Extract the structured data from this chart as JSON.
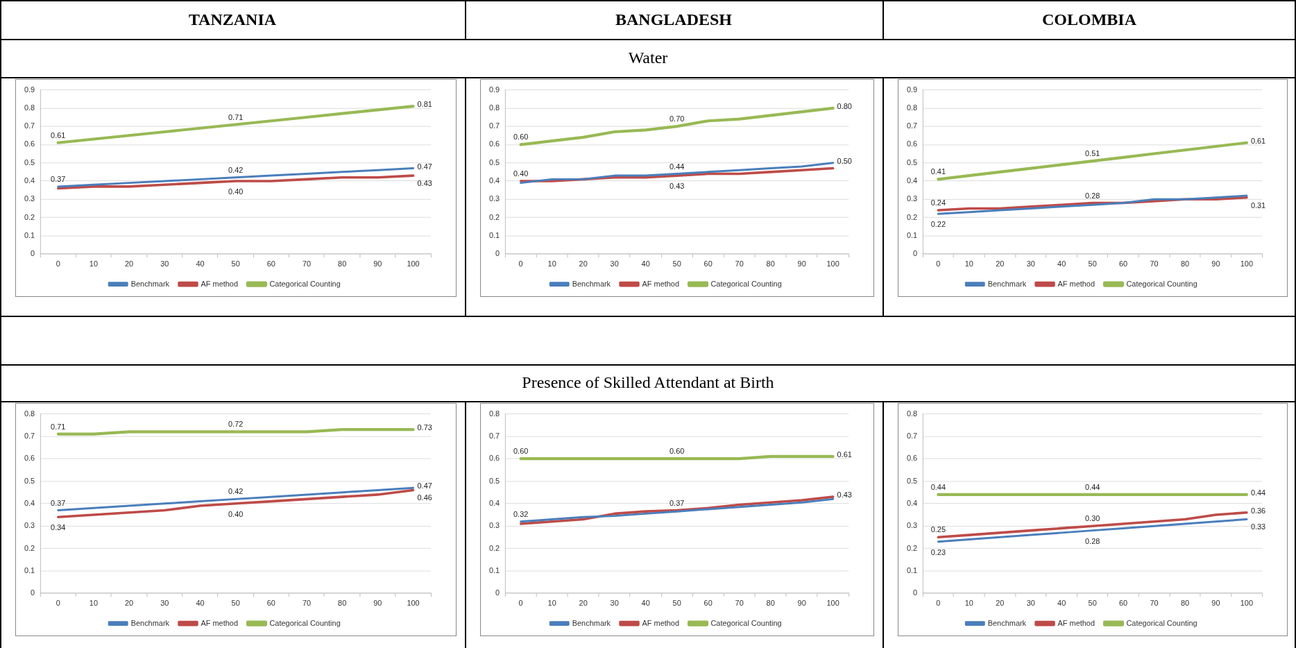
{
  "chart_data": [
    {
      "type": "line",
      "title": "TANZANIA",
      "annotations": [
        "Water"
      ],
      "categories": [
        "0",
        "10",
        "20",
        "30",
        "40",
        "50",
        "60",
        "70",
        "80",
        "90",
        "100"
      ],
      "ylim": [
        0,
        0.9
      ],
      "yticks": [
        0,
        0.1,
        0.2,
        0.3,
        0.4,
        0.5,
        0.6,
        0.7,
        0.8,
        0.9
      ],
      "grid": "y",
      "legend": "bottom",
      "marker": "none",
      "series": [
        {
          "name": "Benchmark",
          "color": "#4a7ebb",
          "values": [
            0.37,
            0.38,
            0.39,
            0.4,
            0.41,
            0.42,
            0.43,
            0.44,
            0.45,
            0.46,
            0.47
          ],
          "value_labels": [
            "0.37",
            null,
            null,
            null,
            null,
            "0.42",
            null,
            null,
            null,
            null,
            "0.47"
          ]
        },
        {
          "name": "AF method",
          "color": "#be4b48",
          "values": [
            0.36,
            0.37,
            0.37,
            0.38,
            0.39,
            0.4,
            0.4,
            0.41,
            0.42,
            0.42,
            0.43
          ],
          "value_labels": [
            null,
            null,
            null,
            null,
            null,
            "0.40",
            null,
            null,
            null,
            null,
            "0.43"
          ]
        },
        {
          "name": "Categorical Counting",
          "color": "#98b954",
          "values": [
            0.61,
            0.63,
            0.65,
            0.67,
            0.69,
            0.71,
            0.73,
            0.75,
            0.77,
            0.79,
            0.81
          ],
          "value_labels": [
            "0.61",
            null,
            null,
            null,
            null,
            "0.71",
            null,
            null,
            null,
            null,
            "0.81"
          ]
        }
      ]
    },
    {
      "type": "line",
      "title": "BANGLADESH",
      "categories": [
        "0",
        "10",
        "20",
        "30",
        "40",
        "50",
        "60",
        "70",
        "80",
        "90",
        "100"
      ],
      "ylim": [
        0,
        0.9
      ],
      "yticks": [
        0,
        0.1,
        0.2,
        0.3,
        0.4,
        0.5,
        0.6,
        0.7,
        0.8,
        0.9
      ],
      "grid": "y",
      "legend": "bottom",
      "marker": "none",
      "series": [
        {
          "name": "Benchmark",
          "color": "#4a7ebb",
          "values": [
            0.39,
            0.41,
            0.41,
            0.43,
            0.43,
            0.44,
            0.45,
            0.46,
            0.47,
            0.48,
            0.5
          ],
          "value_labels": [
            null,
            null,
            null,
            null,
            null,
            "0.44",
            null,
            null,
            null,
            null,
            "0.50"
          ]
        },
        {
          "name": "AF method",
          "color": "#be4b48",
          "values": [
            0.4,
            0.4,
            0.41,
            0.42,
            0.42,
            0.43,
            0.44,
            0.44,
            0.45,
            0.46,
            0.47
          ],
          "value_labels": [
            "0.40",
            null,
            null,
            null,
            null,
            "0.43",
            null,
            null,
            null,
            null,
            null
          ]
        },
        {
          "name": "Categorical Counting",
          "color": "#98b954",
          "values": [
            0.6,
            0.62,
            0.64,
            0.67,
            0.68,
            0.7,
            0.73,
            0.74,
            0.76,
            0.78,
            0.8
          ],
          "value_labels": [
            "0.60",
            null,
            null,
            null,
            null,
            "0.70",
            null,
            null,
            null,
            null,
            "0.80"
          ]
        }
      ]
    },
    {
      "type": "line",
      "title": "COLOMBIA",
      "categories": [
        "0",
        "10",
        "20",
        "30",
        "40",
        "50",
        "60",
        "70",
        "80",
        "90",
        "100"
      ],
      "ylim": [
        0,
        0.9
      ],
      "yticks": [
        0,
        0.1,
        0.2,
        0.3,
        0.4,
        0.5,
        0.6,
        0.7,
        0.8,
        0.9
      ],
      "grid": "y",
      "legend": "bottom",
      "marker": "none",
      "series": [
        {
          "name": "Benchmark",
          "color": "#4a7ebb",
          "values": [
            0.22,
            0.23,
            0.24,
            0.25,
            0.26,
            0.27,
            0.28,
            0.3,
            0.3,
            0.31,
            0.32
          ],
          "value_labels": [
            "0.22",
            null,
            null,
            null,
            null,
            null,
            null,
            null,
            null,
            null,
            null
          ]
        },
        {
          "name": "AF method",
          "color": "#be4b48",
          "values": [
            0.24,
            0.25,
            0.25,
            0.26,
            0.27,
            0.28,
            0.28,
            0.29,
            0.3,
            0.3,
            0.31
          ],
          "value_labels": [
            "0.24",
            null,
            null,
            null,
            null,
            "0.28",
            null,
            null,
            null,
            null,
            "0.31"
          ]
        },
        {
          "name": "Categorical Counting",
          "color": "#98b954",
          "values": [
            0.41,
            0.43,
            0.45,
            0.47,
            0.49,
            0.51,
            0.53,
            0.55,
            0.57,
            0.59,
            0.61
          ],
          "value_labels": [
            "0.41",
            null,
            null,
            null,
            null,
            "0.51",
            null,
            null,
            null,
            null,
            "0.61"
          ]
        }
      ]
    },
    {
      "type": "line",
      "annotations": [
        "Presence of Skilled Attendant at Birth"
      ],
      "categories": [
        "0",
        "10",
        "20",
        "30",
        "40",
        "50",
        "60",
        "70",
        "80",
        "90",
        "100"
      ],
      "ylim": [
        0,
        0.8
      ],
      "yticks": [
        0,
        0.1,
        0.2,
        0.3,
        0.4,
        0.5,
        0.6,
        0.7,
        0.8
      ],
      "grid": "y",
      "legend": "bottom",
      "marker": "none",
      "series": [
        {
          "name": "Benchmark",
          "color": "#4a7ebb",
          "values": [
            0.37,
            0.38,
            0.39,
            0.4,
            0.41,
            0.42,
            0.43,
            0.44,
            0.45,
            0.46,
            0.47
          ],
          "value_labels": [
            "0.37",
            null,
            null,
            null,
            null,
            "0.42",
            null,
            null,
            null,
            null,
            "0.47"
          ]
        },
        {
          "name": "AF method",
          "color": "#be4b48",
          "values": [
            0.34,
            0.35,
            0.36,
            0.37,
            0.39,
            0.4,
            0.41,
            0.42,
            0.43,
            0.44,
            0.46
          ],
          "value_labels": [
            "0.34",
            null,
            null,
            null,
            null,
            "0.40",
            null,
            null,
            null,
            null,
            "0.46"
          ]
        },
        {
          "name": "Categorical Counting",
          "color": "#98b954",
          "values": [
            0.71,
            0.71,
            0.72,
            0.72,
            0.72,
            0.72,
            0.72,
            0.72,
            0.73,
            0.73,
            0.73
          ],
          "value_labels": [
            "0.71",
            null,
            null,
            null,
            null,
            "0.72",
            null,
            null,
            null,
            null,
            "0.73"
          ]
        }
      ]
    },
    {
      "type": "line",
      "categories": [
        "0",
        "10",
        "20",
        "30",
        "40",
        "50",
        "60",
        "70",
        "80",
        "90",
        "100"
      ],
      "ylim": [
        0,
        0.8
      ],
      "yticks": [
        0,
        0.1,
        0.2,
        0.3,
        0.4,
        0.5,
        0.6,
        0.7,
        0.8
      ],
      "grid": "y",
      "legend": "bottom",
      "marker": "none",
      "series": [
        {
          "name": "Benchmark",
          "color": "#4a7ebb",
          "values": [
            0.32,
            0.33,
            0.34,
            0.345,
            0.355,
            0.365,
            0.375,
            0.385,
            0.395,
            0.405,
            0.42
          ],
          "value_labels": [
            "0.32",
            null,
            null,
            null,
            null,
            null,
            null,
            null,
            null,
            null,
            null
          ]
        },
        {
          "name": "AF method",
          "color": "#be4b48",
          "values": [
            0.31,
            0.32,
            0.33,
            0.355,
            0.365,
            0.37,
            0.38,
            0.395,
            0.405,
            0.415,
            0.43
          ],
          "value_labels": [
            null,
            null,
            null,
            null,
            null,
            "0.37",
            null,
            null,
            null,
            null,
            "0.43"
          ]
        },
        {
          "name": "Categorical Counting",
          "color": "#98b954",
          "values": [
            0.6,
            0.6,
            0.6,
            0.6,
            0.6,
            0.6,
            0.6,
            0.6,
            0.61,
            0.61,
            0.61
          ],
          "value_labels": [
            "0.60",
            null,
            null,
            null,
            null,
            "0.60",
            null,
            null,
            null,
            null,
            "0.61"
          ]
        }
      ]
    },
    {
      "type": "line",
      "categories": [
        "0",
        "10",
        "20",
        "30",
        "40",
        "50",
        "60",
        "70",
        "80",
        "90",
        "100"
      ],
      "ylim": [
        0,
        0.8
      ],
      "yticks": [
        0,
        0.1,
        0.2,
        0.3,
        0.4,
        0.5,
        0.6,
        0.7,
        0.8
      ],
      "grid": "y",
      "legend": "bottom",
      "marker": "none",
      "series": [
        {
          "name": "Benchmark",
          "color": "#4a7ebb",
          "values": [
            0.23,
            0.24,
            0.25,
            0.26,
            0.27,
            0.28,
            0.29,
            0.3,
            0.31,
            0.32,
            0.33
          ],
          "value_labels": [
            "0.23",
            null,
            null,
            null,
            null,
            "0.28",
            null,
            null,
            null,
            null,
            "0.33"
          ]
        },
        {
          "name": "AF method",
          "color": "#be4b48",
          "values": [
            0.25,
            0.26,
            0.27,
            0.28,
            0.29,
            0.3,
            0.31,
            0.32,
            0.33,
            0.35,
            0.36
          ],
          "value_labels": [
            "0.25",
            null,
            null,
            null,
            null,
            "0.30",
            null,
            null,
            null,
            null,
            "0.36"
          ]
        },
        {
          "name": "Categorical Counting",
          "color": "#98b954",
          "values": [
            0.44,
            0.44,
            0.44,
            0.44,
            0.44,
            0.44,
            0.44,
            0.44,
            0.44,
            0.44,
            0.44
          ],
          "value_labels": [
            "0.44",
            null,
            null,
            null,
            null,
            "0.44",
            null,
            null,
            null,
            null,
            "0.44"
          ]
        }
      ]
    }
  ]
}
